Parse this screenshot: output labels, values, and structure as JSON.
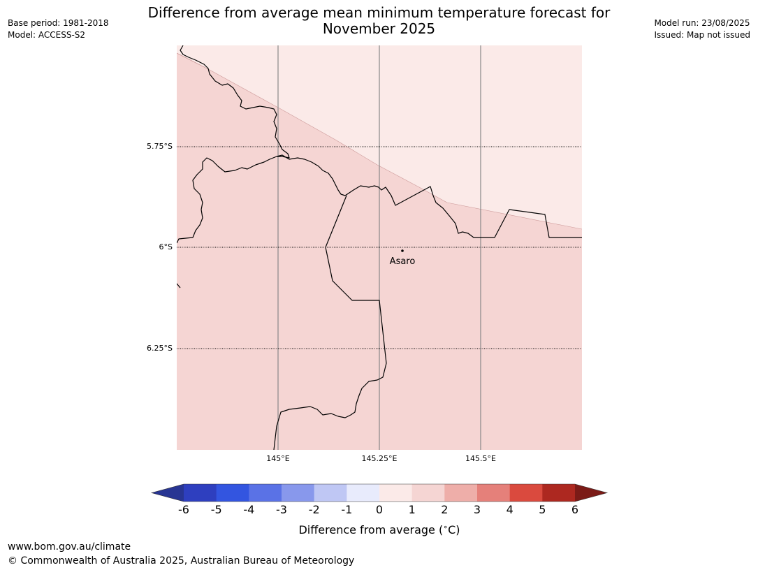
{
  "title": {
    "line1": "Difference from average mean minimum temperature forecast for",
    "line2": "November 2025"
  },
  "meta_left": {
    "base_period": "Base period: 1981-2018",
    "model": "Model: ACCESS-S2"
  },
  "meta_right": {
    "model_run": "Model run: 23/08/2025",
    "issued": "Issued: Map not issued"
  },
  "map": {
    "lat_labels": [
      "5.75°S",
      "6°S",
      "6.25°S"
    ],
    "lon_labels": [
      "145°E",
      "145.25°E",
      "145.5°E"
    ],
    "place": {
      "name": "Asaro"
    },
    "fill_colors": {
      "zero_to_one": "#fbeae8",
      "one_to_two": "#f5d5d3"
    }
  },
  "colorbar": {
    "ticks": [
      "-6",
      "-5",
      "-4",
      "-3",
      "-2",
      "-1",
      "0",
      "1",
      "2",
      "3",
      "4",
      "5",
      "6"
    ],
    "colors": [
      "#283593",
      "#2e3fbf",
      "#3355e0",
      "#5a72e6",
      "#8898ec",
      "#bfc7f4",
      "#e8ebfc",
      "#fbeae8",
      "#f5d5d3",
      "#eeaea9",
      "#e5807a",
      "#da4a3e",
      "#ad2820",
      "#7b1b17"
    ],
    "label": "Difference from average ( C)",
    "label_unit_symbol": "∘"
  },
  "footer": {
    "url": "www.bom.gov.au/climate",
    "copyright": "© Commonwealth of Australia 2025, Australian Bureau of Meteorology"
  }
}
